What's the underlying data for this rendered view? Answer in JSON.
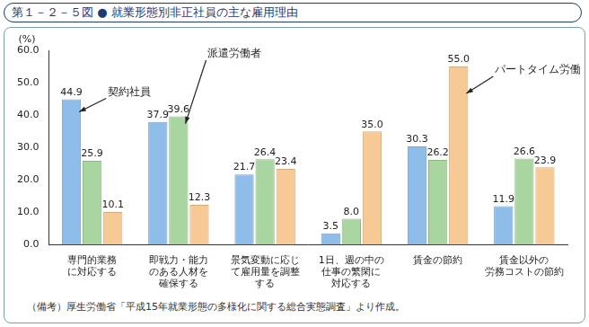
{
  "chart_data": {
    "type": "bar",
    "title": "第１－２－５図 ● 就業形態別非正社員の主な雇用理由",
    "y_label": "(%)",
    "note": "（備考）厚生労働省「平成15年就業形態の多様化に関する総合実態調査」より作成。",
    "categories": [
      [
        "専門的業務",
        "に対応する"
      ],
      [
        "即戦力・能力",
        "のある人材を",
        "確保する"
      ],
      [
        "景気変動に応じ",
        "て雇用量を調整",
        "する"
      ],
      [
        "1日、週の中の",
        "仕事の繁閑に",
        "対応する"
      ],
      [
        "賃金の節約"
      ],
      [
        "賃金以外の",
        "労務コストの節約"
      ]
    ],
    "series": [
      {
        "name": "契約社員",
        "color": "#8fbde9",
        "values": [
          44.9,
          37.9,
          21.7,
          3.5,
          30.3,
          11.9
        ],
        "value_labels": [
          "44.9",
          "37.9",
          "21.7",
          "3.5",
          "30.3",
          "11.9"
        ]
      },
      {
        "name": "派遣労働者",
        "color": "#a9d6a0",
        "values": [
          25.9,
          39.6,
          26.4,
          8.0,
          26.2,
          26.6
        ],
        "value_labels": [
          "25.9",
          "39.6",
          "26.4",
          "8.0",
          "26.2",
          "26.6"
        ]
      },
      {
        "name": "パートタイム労働者",
        "color": "#f7c995",
        "values": [
          10.1,
          12.3,
          23.4,
          35.0,
          55.0,
          23.9
        ],
        "value_labels": [
          "10.1",
          "12.3",
          "23.4",
          "35.0",
          "55.0",
          "23.9"
        ]
      }
    ],
    "ylim": [
      0,
      60
    ],
    "yticks": [
      {
        "value": 0,
        "label": "0.0"
      },
      {
        "value": 10,
        "label": "10.0"
      },
      {
        "value": 20,
        "label": "20.0"
      },
      {
        "value": 30,
        "label": "30.0"
      },
      {
        "value": 40,
        "label": "40.0"
      },
      {
        "value": 50,
        "label": "50.0"
      },
      {
        "value": 60,
        "label": "60.0"
      }
    ],
    "grid": false,
    "data_labels": true
  }
}
